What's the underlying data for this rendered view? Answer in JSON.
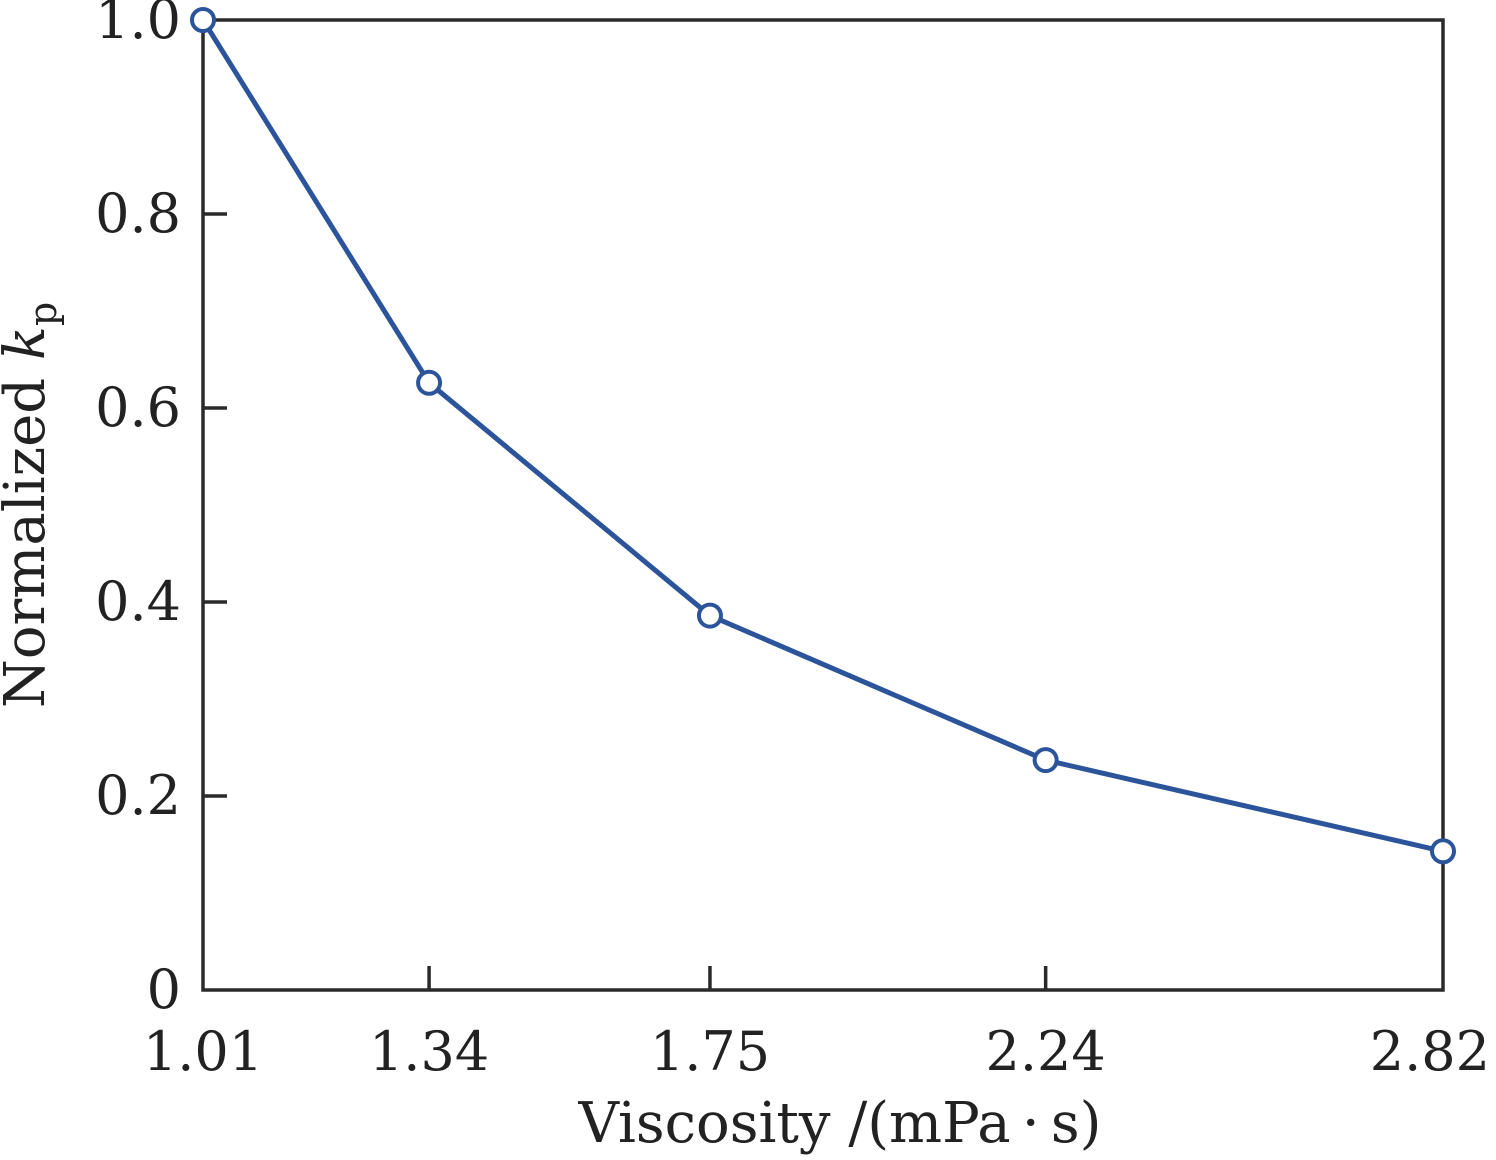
{
  "chart_data": {
    "type": "line",
    "title": "",
    "xlabel": "Viscosity /(mPa · s)",
    "ylabel": {
      "prefix": "Normalized ",
      "symbol": "k",
      "subscript": "p"
    },
    "x_categories": [
      "1.01",
      "1.34",
      "1.75",
      "2.24",
      "2.82"
    ],
    "x": [
      1.01,
      1.34,
      1.75,
      2.24,
      2.82
    ],
    "y_ticks": [
      "0",
      "0.2",
      "0.4",
      "0.6",
      "0.8",
      "1.0"
    ],
    "ylim": [
      0,
      1.0
    ],
    "xlim": [
      1.01,
      2.82
    ],
    "series": [
      {
        "values": [
          1.0,
          0.626,
          0.386,
          0.237,
          0.143
        ],
        "color": "#2b549b",
        "marker": "open-circle"
      }
    ],
    "grid": false,
    "legend": "none"
  }
}
